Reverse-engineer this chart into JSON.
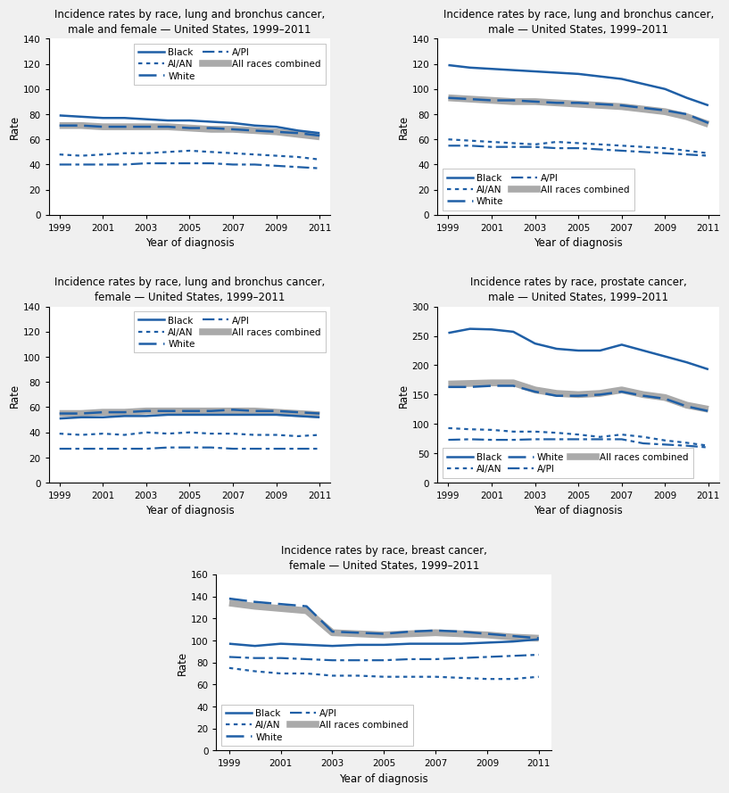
{
  "years": [
    1999,
    2000,
    2001,
    2002,
    2003,
    2004,
    2005,
    2006,
    2007,
    2008,
    2009,
    2010,
    2011
  ],
  "lung_both": {
    "title": "Incidence rates by race, lung and bronchus cancer,\nmale and female — United States, 1999–2011",
    "ylim": [
      0,
      140
    ],
    "yticks": [
      0,
      20,
      40,
      60,
      80,
      100,
      120,
      140
    ],
    "legend_loc": "upper right",
    "legend_ncol": 2,
    "black": [
      79,
      78,
      77,
      77,
      76,
      75,
      75,
      74,
      73,
      71,
      70,
      67,
      65
    ],
    "white": [
      71,
      71,
      70,
      70,
      70,
      70,
      69,
      69,
      68,
      67,
      66,
      65,
      63
    ],
    "aian": [
      48,
      47,
      48,
      49,
      49,
      50,
      51,
      50,
      49,
      48,
      47,
      46,
      44
    ],
    "api": [
      40,
      40,
      40,
      40,
      41,
      41,
      41,
      41,
      40,
      40,
      39,
      38,
      37
    ],
    "all": [
      71,
      71,
      70,
      70,
      70,
      70,
      69,
      68,
      68,
      67,
      66,
      64,
      62
    ]
  },
  "lung_male": {
    "title": "Incidence rates by race, lung and bronchus cancer,\nmale — United States, 1999–2011",
    "ylim": [
      0,
      140
    ],
    "yticks": [
      0,
      20,
      40,
      60,
      80,
      100,
      120,
      140
    ],
    "legend_loc": "lower left",
    "legend_ncol": 2,
    "black": [
      119,
      117,
      116,
      115,
      114,
      113,
      112,
      110,
      108,
      104,
      100,
      93,
      87
    ],
    "white": [
      93,
      92,
      91,
      91,
      90,
      89,
      89,
      88,
      87,
      85,
      83,
      80,
      73
    ],
    "aian": [
      60,
      59,
      58,
      57,
      56,
      58,
      57,
      56,
      55,
      54,
      53,
      51,
      49
    ],
    "api": [
      55,
      55,
      54,
      54,
      54,
      53,
      53,
      52,
      51,
      50,
      49,
      48,
      47
    ],
    "all": [
      93,
      92,
      91,
      90,
      90,
      89,
      88,
      87,
      86,
      84,
      82,
      78,
      72
    ]
  },
  "lung_female": {
    "title": "Incidence rates by race, lung and bronchus cancer,\nfemale — United States, 1999–2011",
    "ylim": [
      0,
      140
    ],
    "yticks": [
      0,
      20,
      40,
      60,
      80,
      100,
      120,
      140
    ],
    "legend_loc": "upper right",
    "legend_ncol": 2,
    "black": [
      51,
      52,
      52,
      53,
      53,
      54,
      54,
      54,
      54,
      54,
      54,
      53,
      52
    ],
    "white": [
      55,
      55,
      56,
      56,
      57,
      57,
      57,
      57,
      58,
      57,
      57,
      56,
      55
    ],
    "aian": [
      39,
      38,
      39,
      38,
      40,
      39,
      40,
      39,
      39,
      38,
      38,
      37,
      38
    ],
    "api": [
      27,
      27,
      27,
      27,
      27,
      28,
      28,
      28,
      27,
      27,
      27,
      27,
      27
    ],
    "all": [
      55,
      55,
      56,
      56,
      57,
      57,
      57,
      57,
      57,
      57,
      56,
      55,
      54
    ]
  },
  "prostate": {
    "title": "Incidence rates by race, prostate cancer,\nmale — United States, 1999–2011",
    "ylim": [
      0,
      300
    ],
    "yticks": [
      0,
      50,
      100,
      150,
      200,
      250,
      300
    ],
    "legend_loc": "lower left",
    "legend_ncol": 3,
    "black": [
      255,
      262,
      261,
      257,
      237,
      228,
      225,
      225,
      235,
      225,
      215,
      205,
      193
    ],
    "white": [
      163,
      163,
      165,
      165,
      155,
      148,
      148,
      150,
      155,
      148,
      143,
      130,
      122
    ],
    "aian": [
      93,
      91,
      90,
      87,
      87,
      85,
      82,
      78,
      82,
      78,
      72,
      68,
      63
    ],
    "api": [
      73,
      74,
      73,
      73,
      74,
      74,
      74,
      74,
      74,
      67,
      65,
      63,
      60
    ],
    "all": [
      168,
      169,
      170,
      170,
      158,
      152,
      150,
      152,
      158,
      150,
      145,
      132,
      125
    ]
  },
  "breast": {
    "title": "Incidence rates by race, breast cancer,\nfemale — United States, 1999–2011",
    "ylim": [
      0,
      160
    ],
    "yticks": [
      0,
      20,
      40,
      60,
      80,
      100,
      120,
      140,
      160
    ],
    "legend_loc": "lower left",
    "legend_ncol": 2,
    "black": [
      97,
      95,
      97,
      96,
      95,
      96,
      96,
      97,
      97,
      97,
      98,
      99,
      101
    ],
    "white": [
      138,
      135,
      133,
      131,
      108,
      107,
      106,
      108,
      109,
      108,
      106,
      104,
      102
    ],
    "aian": [
      75,
      72,
      70,
      70,
      68,
      68,
      67,
      67,
      67,
      66,
      65,
      65,
      67
    ],
    "api": [
      85,
      84,
      84,
      83,
      82,
      82,
      82,
      83,
      83,
      84,
      85,
      86,
      87
    ],
    "all": [
      134,
      131,
      129,
      127,
      107,
      106,
      105,
      106,
      107,
      106,
      105,
      103,
      102
    ]
  }
}
